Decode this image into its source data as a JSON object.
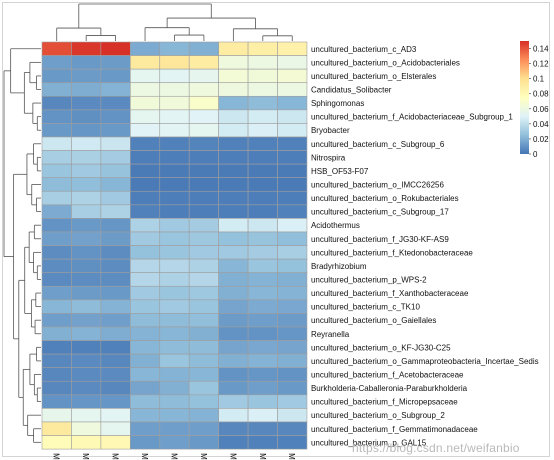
{
  "watermark": "https://blog.csdn.net/weifanbio",
  "chart_data": {
    "type": "heatmap",
    "columns": [
      "M02",
      "M01",
      "M03",
      "M08",
      "M07",
      "M09",
      "M05",
      "M04",
      "M06"
    ],
    "rows": [
      "uncultured_bacterium_c_AD3",
      "uncultured_bacterium_o_Acidobacteriales",
      "uncultured_bacterium_o_Elsterales",
      "Candidatus_Solibacter",
      "Sphingomonas",
      "uncultured_bacterium_f_Acidobacteriaceae_Subgroup_1",
      "Bryobacter",
      "uncultured_bacterium_c_Subgroup_6",
      "Nitrospira",
      "HSB_OF53-F07",
      "uncultured_bacterium_o_IMCC26256",
      "uncultured_bacterium_o_Rokubacteriales",
      "uncultured_bacterium_c_Subgroup_17",
      "Acidothermus",
      "uncultured_bacterium_f_JG30-KF-AS9",
      "uncultured_bacterium_f_Ktedonobacteraceae",
      "Bradyrhizobium",
      "uncultured_bacterium_p_WPS-2",
      "uncultured_bacterium_f_Xanthobacteraceae",
      "uncultured_bacterium_c_TK10",
      "uncultured_bacterium_o_Gaiellales",
      "Reyranella",
      "uncultured_bacterium_o_KF-JG30-C25",
      "uncultured_bacterium_o_Gammaproteobacteria_Incertae_Sedis",
      "uncultured_bacterium_f_Acetobacteraceae",
      "Burkholderia-Caballeronia-Paraburkholderia",
      "uncultured_bacterium_f_Micropepsaceae",
      "uncultured_bacterium_o_Subgroup_2",
      "uncultured_bacterium_f_Gemmatimonadaceae",
      "uncultured_bacterium_p_GAL15"
    ],
    "values": [
      [
        0.142,
        0.148,
        0.15,
        0.018,
        0.022,
        0.02,
        0.09,
        0.088,
        0.086
      ],
      [
        0.014,
        0.012,
        0.013,
        0.092,
        0.094,
        0.09,
        0.062,
        0.06,
        0.058
      ],
      [
        0.012,
        0.013,
        0.012,
        0.054,
        0.052,
        0.055,
        0.065,
        0.064,
        0.066
      ],
      [
        0.02,
        0.019,
        0.021,
        0.06,
        0.06,
        0.062,
        0.061,
        0.06,
        0.06
      ],
      [
        0.006,
        0.007,
        0.007,
        0.064,
        0.063,
        0.07,
        0.022,
        0.024,
        0.022
      ],
      [
        0.01,
        0.009,
        0.01,
        0.054,
        0.052,
        0.051,
        0.044,
        0.046,
        0.044
      ],
      [
        0.012,
        0.011,
        0.012,
        0.051,
        0.052,
        0.054,
        0.046,
        0.048,
        0.046
      ],
      [
        0.044,
        0.045,
        0.043,
        0.004,
        0.004,
        0.005,
        0.004,
        0.004,
        0.004
      ],
      [
        0.032,
        0.033,
        0.031,
        0.003,
        0.003,
        0.003,
        0.003,
        0.003,
        0.003
      ],
      [
        0.028,
        0.03,
        0.027,
        0.002,
        0.002,
        0.002,
        0.002,
        0.002,
        0.002
      ],
      [
        0.024,
        0.025,
        0.022,
        0.002,
        0.002,
        0.002,
        0.002,
        0.002,
        0.002
      ],
      [
        0.032,
        0.034,
        0.03,
        0.003,
        0.003,
        0.003,
        0.003,
        0.003,
        0.003
      ],
      [
        0.018,
        0.032,
        0.034,
        0.004,
        0.003,
        0.003,
        0.003,
        0.003,
        0.004
      ],
      [
        0.01,
        0.012,
        0.011,
        0.034,
        0.03,
        0.031,
        0.046,
        0.044,
        0.048
      ],
      [
        0.014,
        0.015,
        0.013,
        0.03,
        0.028,
        0.029,
        0.026,
        0.027,
        0.025
      ],
      [
        0.008,
        0.01,
        0.008,
        0.026,
        0.028,
        0.03,
        0.03,
        0.031,
        0.032
      ],
      [
        0.008,
        0.009,
        0.008,
        0.036,
        0.036,
        0.034,
        0.022,
        0.028,
        0.026
      ],
      [
        0.007,
        0.008,
        0.008,
        0.036,
        0.034,
        0.036,
        0.02,
        0.021,
        0.02
      ],
      [
        0.014,
        0.013,
        0.012,
        0.03,
        0.028,
        0.029,
        0.02,
        0.022,
        0.021
      ],
      [
        0.022,
        0.024,
        0.021,
        0.028,
        0.03,
        0.028,
        0.016,
        0.018,
        0.017
      ],
      [
        0.014,
        0.015,
        0.014,
        0.024,
        0.024,
        0.025,
        0.013,
        0.014,
        0.013
      ],
      [
        0.02,
        0.021,
        0.019,
        0.021,
        0.022,
        0.02,
        0.01,
        0.01,
        0.011
      ],
      [
        0.004,
        0.004,
        0.004,
        0.022,
        0.024,
        0.024,
        0.016,
        0.017,
        0.016
      ],
      [
        0.006,
        0.007,
        0.006,
        0.02,
        0.028,
        0.024,
        0.02,
        0.021,
        0.02
      ],
      [
        0.006,
        0.007,
        0.007,
        0.022,
        0.021,
        0.022,
        0.01,
        0.011,
        0.01
      ],
      [
        0.006,
        0.007,
        0.006,
        0.016,
        0.02,
        0.028,
        0.012,
        0.014,
        0.012
      ],
      [
        0.01,
        0.011,
        0.011,
        0.024,
        0.024,
        0.026,
        0.03,
        0.028,
        0.03
      ],
      [
        0.056,
        0.054,
        0.052,
        0.022,
        0.022,
        0.021,
        0.046,
        0.048,
        0.044
      ],
      [
        0.092,
        0.062,
        0.054,
        0.014,
        0.014,
        0.014,
        0.006,
        0.006,
        0.006
      ],
      [
        0.078,
        0.08,
        0.081,
        0.012,
        0.014,
        0.012,
        0.004,
        0.004,
        0.004
      ]
    ],
    "value_range": [
      0,
      0.15
    ],
    "legend_ticks": [
      0,
      0.02,
      0.04,
      0.06,
      0.08,
      0.1,
      0.12,
      0.14
    ],
    "legend_ticks_text": [
      "0",
      "0.02",
      "0.04",
      "0.06",
      "0.08",
      "0.1",
      "0.12",
      "0.14"
    ],
    "color_stops": [
      "#4575b4",
      "#91bfdb",
      "#e0f3f8",
      "#ffffbf",
      "#fee090",
      "#fc8d59",
      "#d73027"
    ],
    "legend_position": "right",
    "row_dendrogram": "left",
    "column_dendrogram": "top",
    "grid": true,
    "column_clusters": [
      [
        "M02",
        "M01",
        "M03"
      ],
      [
        "M08",
        "M07",
        "M09"
      ],
      [
        "M05",
        "M04",
        "M06"
      ]
    ]
  }
}
